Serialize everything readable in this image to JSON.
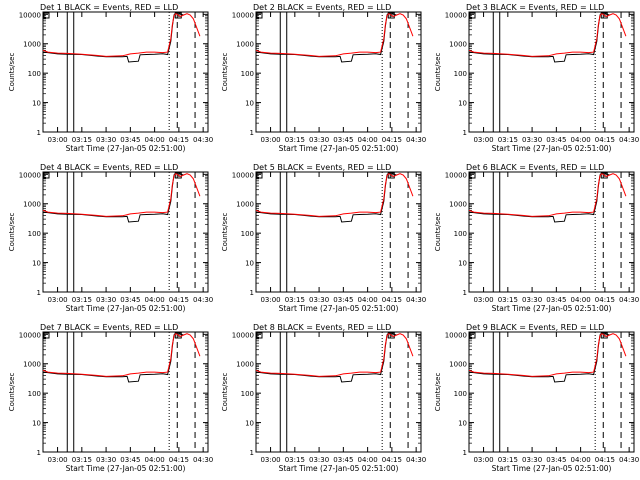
{
  "colors": {
    "events": "#000000",
    "lld": "#ff0000",
    "background": "#ffffff"
  },
  "chart_data": {
    "type": "line",
    "shared": {
      "subtitle": "BLACK = Events, RED = LLD",
      "xlabel": "Start Time (27-Jan-05 02:51:00)",
      "ylabel": "Counts/sec",
      "yscale": "log",
      "ylim": [
        1,
        12000
      ],
      "xlim": [
        "02:51",
        "04:33"
      ],
      "x_ticks": [
        "03:00",
        "03:15",
        "03:30",
        "03:45",
        "04:00",
        "04:15",
        "04:30"
      ],
      "y_ticks": [
        "1",
        "10",
        "100",
        "1000",
        "10000"
      ],
      "vertical_lines": {
        "solid": [
          "03:06",
          "03:10"
        ],
        "dotted": [
          "04:09"
        ],
        "dashed": [
          "04:14",
          "04:25"
        ]
      },
      "events_x": [
        "02:51",
        "02:54",
        "03:00",
        "03:06",
        "03:15",
        "03:25",
        "03:30",
        "03:40",
        "03:43",
        "03:44",
        "03:50",
        "03:51",
        "03:55",
        "04:00",
        "04:05",
        "04:08",
        "04:10",
        "04:11",
        "04:12",
        "04:13",
        "04:14",
        "04:15",
        "04:16",
        "04:18"
      ],
      "events_y": [
        520,
        500,
        450,
        440,
        430,
        380,
        360,
        360,
        370,
        240,
        255,
        420,
        430,
        440,
        460,
        430,
        1200,
        4000,
        9500,
        11000,
        11000,
        10800,
        10000,
        9500
      ],
      "lld_x": [
        "02:51",
        "02:54",
        "03:00",
        "03:06",
        "03:15",
        "03:25",
        "03:30",
        "03:40",
        "03:45",
        "03:50",
        "03:55",
        "04:00",
        "04:05",
        "04:08",
        "04:10",
        "04:11",
        "04:12",
        "04:13",
        "04:14",
        "04:15",
        "04:16",
        "04:18",
        "04:20",
        "04:22",
        "04:24",
        "04:26",
        "04:28"
      ],
      "lld_y": [
        600,
        520,
        480,
        470,
        440,
        400,
        370,
        390,
        450,
        480,
        520,
        520,
        500,
        520,
        1500,
        4500,
        9000,
        10500,
        10000,
        9000,
        8500,
        9500,
        10500,
        9500,
        7000,
        3500,
        1800
      ]
    },
    "panels": [
      {
        "title": "Det 1"
      },
      {
        "title": "Det 2"
      },
      {
        "title": "Det 3"
      },
      {
        "title": "Det 4"
      },
      {
        "title": "Det 5"
      },
      {
        "title": "Det 6"
      },
      {
        "title": "Det 7"
      },
      {
        "title": "Det 8"
      },
      {
        "title": "Det 9"
      }
    ]
  }
}
